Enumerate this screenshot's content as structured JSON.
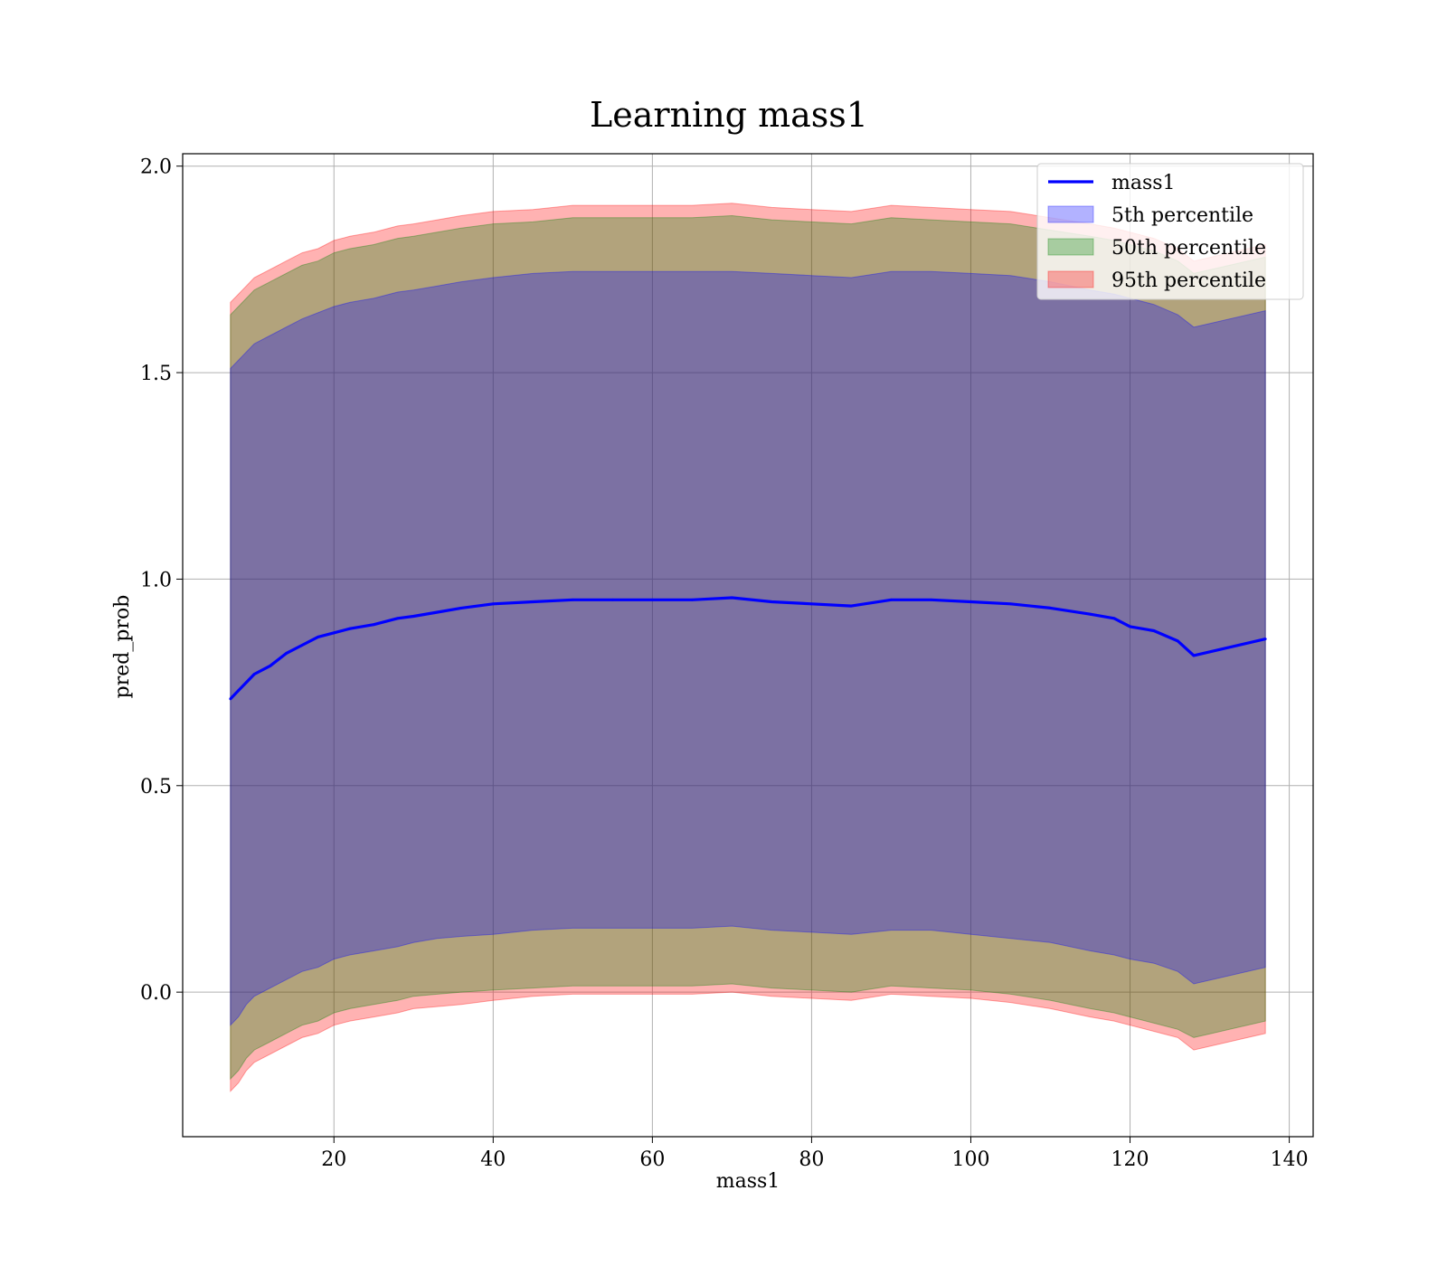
{
  "chart_data": {
    "type": "line",
    "title": "Learning mass1",
    "xlabel": "mass1",
    "ylabel": "pred_prob",
    "xlim": [
      1,
      143
    ],
    "ylim": [
      -0.35,
      2.03
    ],
    "x_ticks": [
      20,
      40,
      60,
      80,
      100,
      120,
      140
    ],
    "y_ticks": [
      0.0,
      0.5,
      1.0,
      1.5,
      2.0
    ],
    "x_tick_labels": [
      "20",
      "40",
      "60",
      "80",
      "100",
      "120",
      "140"
    ],
    "y_tick_labels": [
      "0.0",
      "0.5",
      "1.0",
      "1.5",
      "2.0"
    ],
    "grid": true,
    "legend_position": "top-right",
    "x": [
      7,
      8,
      9,
      10,
      12,
      14,
      16,
      18,
      20,
      22,
      25,
      28,
      30,
      33,
      36,
      40,
      45,
      50,
      55,
      60,
      65,
      70,
      75,
      80,
      85,
      90,
      95,
      100,
      105,
      110,
      115,
      118,
      120,
      123,
      126,
      128,
      137
    ],
    "series": [
      {
        "name": "mass1",
        "kind": "line",
        "color": "#0000ff",
        "values": [
          0.71,
          0.73,
          0.75,
          0.77,
          0.79,
          0.82,
          0.84,
          0.86,
          0.87,
          0.88,
          0.89,
          0.905,
          0.91,
          0.92,
          0.93,
          0.94,
          0.945,
          0.95,
          0.95,
          0.95,
          0.95,
          0.955,
          0.945,
          0.94,
          0.935,
          0.95,
          0.95,
          0.945,
          0.94,
          0.93,
          0.915,
          0.905,
          0.885,
          0.875,
          0.85,
          0.815,
          0.855
        ]
      },
      {
        "name": "5th percentile",
        "kind": "band",
        "color": "#0000ff",
        "alpha": 0.3,
        "lower": [
          -0.08,
          -0.06,
          -0.03,
          -0.01,
          0.01,
          0.03,
          0.05,
          0.06,
          0.08,
          0.09,
          0.1,
          0.11,
          0.12,
          0.13,
          0.135,
          0.14,
          0.15,
          0.155,
          0.155,
          0.155,
          0.155,
          0.16,
          0.15,
          0.145,
          0.14,
          0.15,
          0.15,
          0.14,
          0.13,
          0.12,
          0.1,
          0.09,
          0.08,
          0.07,
          0.05,
          0.02,
          0.06
        ],
        "upper": [
          1.51,
          1.53,
          1.55,
          1.57,
          1.59,
          1.61,
          1.63,
          1.645,
          1.66,
          1.67,
          1.68,
          1.695,
          1.7,
          1.71,
          1.72,
          1.73,
          1.74,
          1.745,
          1.745,
          1.745,
          1.745,
          1.745,
          1.74,
          1.735,
          1.73,
          1.745,
          1.745,
          1.74,
          1.735,
          1.72,
          1.7,
          1.69,
          1.68,
          1.665,
          1.64,
          1.61,
          1.65
        ]
      },
      {
        "name": "50th percentile",
        "kind": "band",
        "color": "#008000",
        "alpha": 0.3,
        "lower": [
          -0.21,
          -0.19,
          -0.16,
          -0.14,
          -0.12,
          -0.1,
          -0.08,
          -0.07,
          -0.05,
          -0.04,
          -0.03,
          -0.02,
          -0.01,
          -0.005,
          0.0,
          0.005,
          0.01,
          0.015,
          0.015,
          0.015,
          0.015,
          0.02,
          0.01,
          0.005,
          0.0,
          0.015,
          0.01,
          0.005,
          -0.005,
          -0.02,
          -0.04,
          -0.05,
          -0.06,
          -0.075,
          -0.09,
          -0.11,
          -0.07
        ],
        "upper": [
          1.64,
          1.66,
          1.68,
          1.7,
          1.72,
          1.74,
          1.76,
          1.77,
          1.79,
          1.8,
          1.81,
          1.825,
          1.83,
          1.84,
          1.85,
          1.86,
          1.865,
          1.875,
          1.875,
          1.875,
          1.875,
          1.88,
          1.87,
          1.865,
          1.86,
          1.875,
          1.87,
          1.865,
          1.86,
          1.845,
          1.83,
          1.82,
          1.81,
          1.795,
          1.77,
          1.74,
          1.78
        ]
      },
      {
        "name": "95th percentile",
        "kind": "band",
        "color": "#ff0000",
        "alpha": 0.3,
        "lower": [
          -0.24,
          -0.22,
          -0.19,
          -0.17,
          -0.15,
          -0.13,
          -0.11,
          -0.1,
          -0.08,
          -0.07,
          -0.06,
          -0.05,
          -0.04,
          -0.035,
          -0.03,
          -0.02,
          -0.01,
          -0.005,
          -0.005,
          -0.005,
          -0.005,
          0.0,
          -0.01,
          -0.015,
          -0.02,
          -0.005,
          -0.01,
          -0.015,
          -0.025,
          -0.04,
          -0.06,
          -0.07,
          -0.08,
          -0.095,
          -0.11,
          -0.14,
          -0.1
        ],
        "upper": [
          1.67,
          1.69,
          1.71,
          1.73,
          1.75,
          1.77,
          1.79,
          1.8,
          1.82,
          1.83,
          1.84,
          1.855,
          1.86,
          1.87,
          1.88,
          1.89,
          1.895,
          1.905,
          1.905,
          1.905,
          1.905,
          1.91,
          1.9,
          1.895,
          1.89,
          1.905,
          1.9,
          1.895,
          1.89,
          1.875,
          1.86,
          1.85,
          1.84,
          1.825,
          1.8,
          1.77,
          1.81
        ]
      }
    ]
  }
}
